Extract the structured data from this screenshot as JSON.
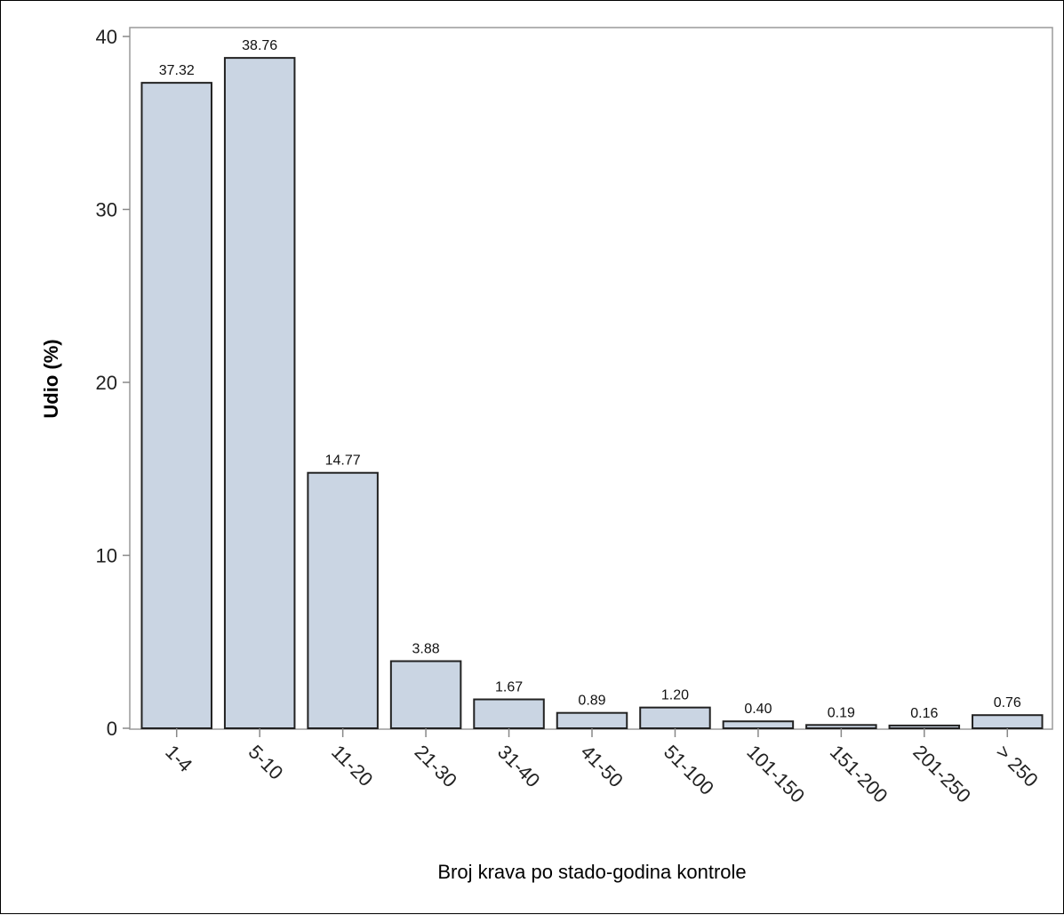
{
  "chart_data": {
    "type": "bar",
    "title": "",
    "xlabel": "Broj krava po stado-godina kontrole",
    "ylabel": "Udio (%)",
    "categories": [
      "1-4",
      "5-10",
      "11-20",
      "21-30",
      "31-40",
      "41-50",
      "51-100",
      "101-150",
      "151-200",
      "201-250",
      "> 250"
    ],
    "values": [
      37.32,
      38.76,
      14.77,
      3.88,
      1.67,
      0.89,
      1.2,
      0.4,
      0.19,
      0.16,
      0.76
    ],
    "value_labels": [
      "37.32",
      "38.76",
      "14.77",
      "3.88",
      "1.67",
      "0.89",
      "1.20",
      "0.40",
      "0.19",
      "0.16",
      "0.76"
    ],
    "ylim": [
      0,
      40
    ],
    "yticks": [
      0,
      10,
      20,
      30,
      40
    ],
    "grid": false,
    "legend": "none",
    "colors": {
      "bar_fill": "#cad5e3",
      "bar_stroke": "#222222",
      "axis": "#888888"
    }
  }
}
